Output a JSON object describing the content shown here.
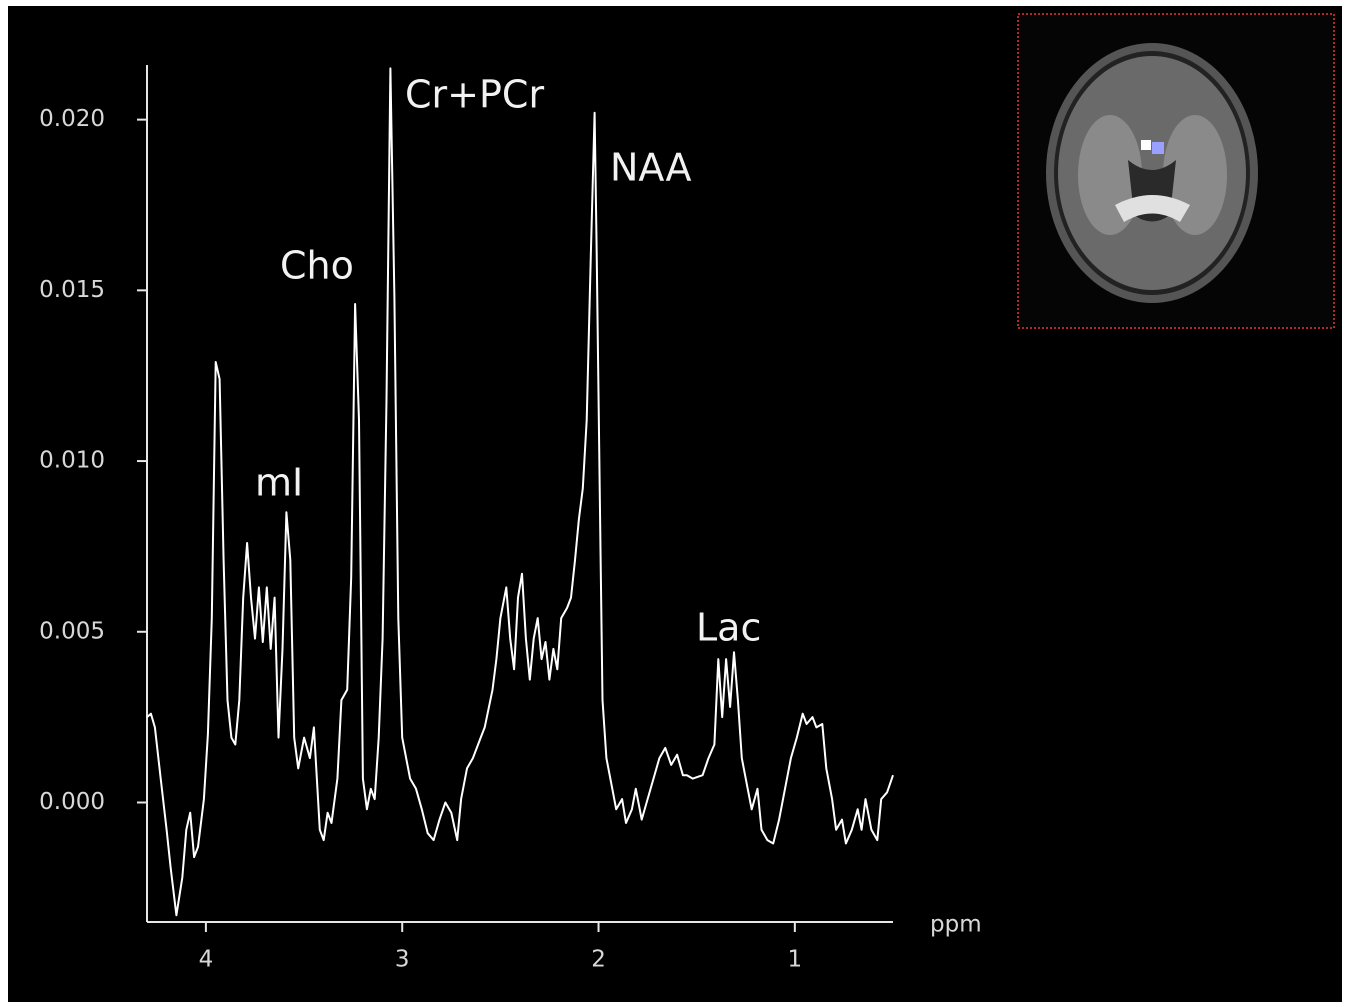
{
  "chart_data": {
    "type": "line",
    "x_label": "ppm",
    "annotations": [
      "Cr+PCr",
      "NAA",
      "Cho",
      "mI",
      "Lac"
    ],
    "color": "#ffffff",
    "x": [
      4.3,
      4.28,
      4.26,
      4.23,
      4.2,
      4.18,
      4.15,
      4.12,
      4.1,
      4.08,
      4.06,
      4.04,
      4.01,
      3.99,
      3.97,
      3.95,
      3.93,
      3.91,
      3.89,
      3.87,
      3.85,
      3.83,
      3.81,
      3.79,
      3.77,
      3.75,
      3.73,
      3.71,
      3.69,
      3.67,
      3.65,
      3.63,
      3.61,
      3.59,
      3.57,
      3.55,
      3.53,
      3.5,
      3.47,
      3.45,
      3.42,
      3.4,
      3.38,
      3.36,
      3.33,
      3.31,
      3.28,
      3.26,
      3.24,
      3.22,
      3.2,
      3.18,
      3.16,
      3.14,
      3.12,
      3.1,
      3.08,
      3.06,
      3.04,
      3.02,
      3.0,
      2.96,
      2.93,
      2.9,
      2.87,
      2.84,
      2.81,
      2.78,
      2.75,
      2.72,
      2.7,
      2.67,
      2.64,
      2.6,
      2.58,
      2.54,
      2.52,
      2.5,
      2.47,
      2.45,
      2.43,
      2.41,
      2.39,
      2.37,
      2.35,
      2.33,
      2.31,
      2.29,
      2.27,
      2.25,
      2.23,
      2.21,
      2.19,
      2.16,
      2.14,
      2.12,
      2.1,
      2.08,
      2.06,
      2.04,
      2.02,
      2.01,
      1.99,
      1.98,
      1.96,
      1.93,
      1.91,
      1.88,
      1.86,
      1.83,
      1.81,
      1.78,
      1.75,
      1.72,
      1.69,
      1.66,
      1.63,
      1.6,
      1.57,
      1.55,
      1.52,
      1.47,
      1.44,
      1.41,
      1.39,
      1.37,
      1.35,
      1.33,
      1.31,
      1.29,
      1.27,
      1.24,
      1.22,
      1.19,
      1.17,
      1.14,
      1.11,
      1.08,
      1.05,
      1.02,
      0.99,
      0.96,
      0.94,
      0.91,
      0.89,
      0.86,
      0.84,
      0.81,
      0.79,
      0.76,
      0.74,
      0.71,
      0.68,
      0.66,
      0.64,
      0.61,
      0.58,
      0.56,
      0.53,
      0.5
    ],
    "y": [
      0.0025,
      0.0026,
      0.0022,
      0.0007,
      -0.0008,
      -0.0019,
      -0.0033,
      -0.0022,
      -0.0008,
      -0.0003,
      -0.0016,
      -0.0013,
      0.0001,
      0.002,
      0.0054,
      0.0129,
      0.0124,
      0.0071,
      0.003,
      0.0019,
      0.0017,
      0.003,
      0.006,
      0.0076,
      0.006,
      0.0048,
      0.0063,
      0.0047,
      0.0063,
      0.0045,
      0.006,
      0.0019,
      0.0045,
      0.0085,
      0.0071,
      0.0019,
      0.001,
      0.0019,
      0.0013,
      0.0022,
      -0.0008,
      -0.0011,
      -0.0003,
      -0.0006,
      0.0007,
      0.003,
      0.0033,
      0.0066,
      0.0146,
      0.0112,
      0.0007,
      -0.0002,
      0.0004,
      0.0001,
      0.0019,
      0.0048,
      0.0118,
      0.0215,
      0.0148,
      0.0054,
      0.0019,
      0.0007,
      0.0004,
      -0.0002,
      -0.0009,
      -0.0011,
      -0.0005,
      0,
      -0.0003,
      -0.0011,
      0.0001,
      0.001,
      0.0013,
      0.0019,
      0.0022,
      0.0033,
      0.0042,
      0.0054,
      0.0063,
      0.0048,
      0.0039,
      0.006,
      0.0067,
      0.0048,
      0.0036,
      0.0048,
      0.0054,
      0.0042,
      0.0047,
      0.0036,
      0.0045,
      0.0039,
      0.0054,
      0.0057,
      0.006,
      0.0071,
      0.0083,
      0.0092,
      0.0112,
      0.0159,
      0.0202,
      0.0163,
      0.0074,
      0.003,
      0.0013,
      0.0004,
      -0.0002,
      0.0001,
      -0.0006,
      -0.0002,
      0.0004,
      -0.0005,
      0.0001,
      0.0007,
      0.0013,
      0.0016,
      0.0011,
      0.0014,
      0.0008,
      0.0008,
      0.0007,
      0.0008,
      0.0013,
      0.0017,
      0.0042,
      0.0025,
      0.0042,
      0.0028,
      0.0044,
      0.003,
      0.0013,
      0.0004,
      -0.0002,
      0.0004,
      -0.0008,
      -0.0011,
      -0.0012,
      -0.0005,
      0.0004,
      0.0013,
      0.0019,
      0.0026,
      0.0023,
      0.0025,
      0.0022,
      0.0023,
      0.001,
      0.0001,
      -0.0008,
      -0.0005,
      -0.0012,
      -0.0008,
      -0.0002,
      -0.0008,
      0.0001,
      -0.0008,
      -0.0011,
      0.0001,
      0.0003,
      0.0008
    ],
    "xlim": [
      4.3,
      0.5
    ],
    "xticks": [
      4,
      3,
      2,
      1
    ],
    "ylim": [
      -0.0035,
      0.0216
    ],
    "yticks": [
      {
        "value": 0,
        "label": "0.000"
      },
      {
        "value": 0.005,
        "label": "0.005"
      },
      {
        "value": 0.01,
        "label": "0.010"
      },
      {
        "value": 0.015,
        "label": "0.015"
      },
      {
        "value": 0.02,
        "label": "0.020"
      }
    ],
    "grid": false
  }
}
